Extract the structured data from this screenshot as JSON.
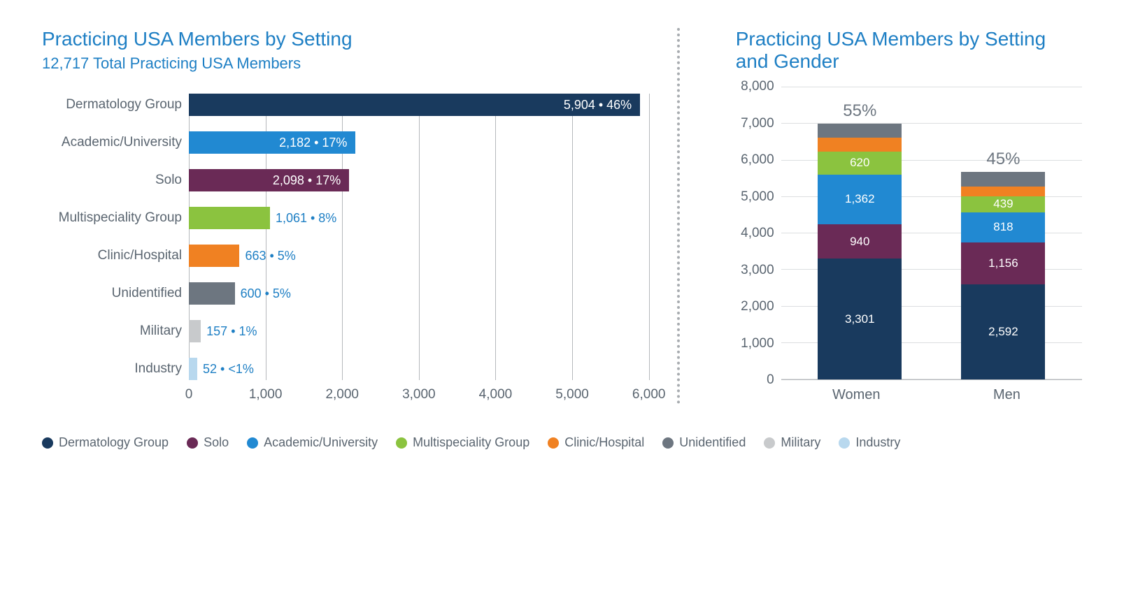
{
  "colors": {
    "title": "#1e7fc4",
    "text": "#5a6570",
    "grid": "#b5b8bc"
  },
  "categories": {
    "dermatology_group": {
      "label": "Dermatology Group",
      "color": "#193a5e"
    },
    "academic_university": {
      "label": "Academic/University",
      "color": "#2189d2"
    },
    "solo": {
      "label": "Solo",
      "color": "#6a2a56"
    },
    "multispeciality_group": {
      "label": "Multispeciality Group",
      "color": "#8bc33f"
    },
    "clinic_hospital": {
      "label": "Clinic/Hospital",
      "color": "#f08122"
    },
    "unidentified": {
      "label": "Unidentified",
      "color": "#6d7680"
    },
    "military": {
      "label": "Military",
      "color": "#c8cacc"
    },
    "industry": {
      "label": "Industry",
      "color": "#b8d8ee"
    }
  },
  "hbar_chart": {
    "title": "Practicing USA Members by Setting",
    "subtitle": "12,717 Total Practicing USA Members",
    "xmax": 6000,
    "xticks": [
      0,
      1000,
      2000,
      3000,
      4000,
      5000,
      6000
    ],
    "xtick_labels": [
      "0",
      "1,000",
      "2,000",
      "3,000",
      "4,000",
      "5,000",
      "6,000"
    ],
    "rows": [
      {
        "cat": "dermatology_group",
        "value": 5904,
        "display": "5,904 • 46%",
        "label_inside": true
      },
      {
        "cat": "academic_university",
        "value": 2182,
        "display": "2,182 • 17%",
        "label_inside": true
      },
      {
        "cat": "solo",
        "value": 2098,
        "display": "2,098 • 17%",
        "label_inside": true
      },
      {
        "cat": "multispeciality_group",
        "value": 1061,
        "display": "1,061 • 8%",
        "label_inside": false
      },
      {
        "cat": "clinic_hospital",
        "value": 663,
        "display": "663 • 5%",
        "label_inside": false
      },
      {
        "cat": "unidentified",
        "value": 600,
        "display": "600 • 5%",
        "label_inside": false
      },
      {
        "cat": "military",
        "value": 157,
        "display": "157 • 1%",
        "label_inside": false
      },
      {
        "cat": "industry",
        "value": 52,
        "display": "52 • <1%",
        "label_inside": false
      }
    ]
  },
  "stacked_chart": {
    "title": "Practicing USA Members by Setting and Gender",
    "ymax": 8000,
    "yticks": [
      0,
      1000,
      2000,
      3000,
      4000,
      5000,
      6000,
      7000,
      8000
    ],
    "ytick_labels": [
      "0",
      "1,000",
      "2,000",
      "3,000",
      "4,000",
      "5,000",
      "6,000",
      "7,000",
      "8,000"
    ],
    "columns": [
      {
        "label": "Women",
        "percent": "55%",
        "segments": [
          {
            "cat": "dermatology_group",
            "value": 3301,
            "display": "3,301"
          },
          {
            "cat": "solo",
            "value": 940,
            "display": "940"
          },
          {
            "cat": "academic_university",
            "value": 1362,
            "display": "1,362"
          },
          {
            "cat": "multispeciality_group",
            "value": 620,
            "display": "620"
          },
          {
            "cat": "clinic_hospital",
            "value": 390,
            "display": ""
          },
          {
            "cat": "unidentified",
            "value": 370,
            "display": ""
          }
        ]
      },
      {
        "label": "Men",
        "percent": "45%",
        "segments": [
          {
            "cat": "dermatology_group",
            "value": 2592,
            "display": "2,592"
          },
          {
            "cat": "solo",
            "value": 1156,
            "display": "1,156"
          },
          {
            "cat": "academic_university",
            "value": 818,
            "display": "818"
          },
          {
            "cat": "multispeciality_group",
            "value": 439,
            "display": "439"
          },
          {
            "cat": "clinic_hospital",
            "value": 270,
            "display": ""
          },
          {
            "cat": "unidentified",
            "value": 400,
            "display": ""
          }
        ]
      }
    ]
  },
  "legend_order": [
    "dermatology_group",
    "solo",
    "academic_university",
    "multispeciality_group",
    "clinic_hospital",
    "unidentified",
    "military",
    "industry"
  ]
}
